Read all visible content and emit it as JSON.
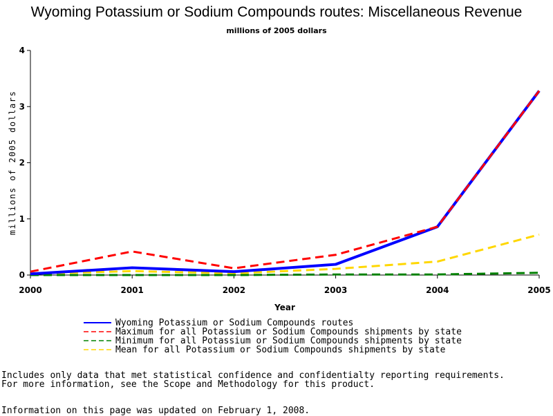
{
  "chart_data": {
    "type": "line",
    "title": "Wyoming Potassium or Sodium Compounds routes: Miscellaneous Revenue",
    "subtitle": "millions of 2005 dollars",
    "xlabel": "Year",
    "ylabel": "millions of 2005 dollars",
    "x": [
      "2000",
      "2001",
      "2002",
      "2003",
      "2004",
      "2005"
    ],
    "xlim": [
      2000,
      2005
    ],
    "ylim": [
      0,
      4
    ],
    "yticks": [
      "0",
      "1",
      "2",
      "3",
      "4"
    ],
    "grid": false,
    "legend_position": "bottom",
    "series": [
      {
        "name": "Wyoming Potassium or Sodium Compounds routes",
        "values": [
          0.02,
          0.13,
          0.06,
          0.19,
          0.86,
          3.28
        ],
        "color": "#0000ff",
        "style": "solid"
      },
      {
        "name": "Maximum for all Potassium or Sodium Compounds shipments by state",
        "values": [
          0.06,
          0.42,
          0.12,
          0.36,
          0.86,
          3.28
        ],
        "color": "#ff0000",
        "style": "dashed"
      },
      {
        "name": "Minimum for all Potassium or Sodium Compounds shipments by state",
        "values": [
          0.0,
          0.0,
          0.0,
          0.01,
          0.01,
          0.04
        ],
        "color": "#008000",
        "style": "dashed"
      },
      {
        "name": "Mean for all Potassium or Sodium Compounds shipments by state",
        "values": [
          0.02,
          0.07,
          0.03,
          0.11,
          0.24,
          0.72
        ],
        "color": "#ffd700",
        "style": "dashed"
      }
    ]
  },
  "footnotes": {
    "line1": "Includes only data that met statistical confidence and confidentialty reporting requirements.",
    "line2": "For more information, see the Scope and Methodology for this product.",
    "updated": "Information on this page was updated on February 1, 2008."
  }
}
